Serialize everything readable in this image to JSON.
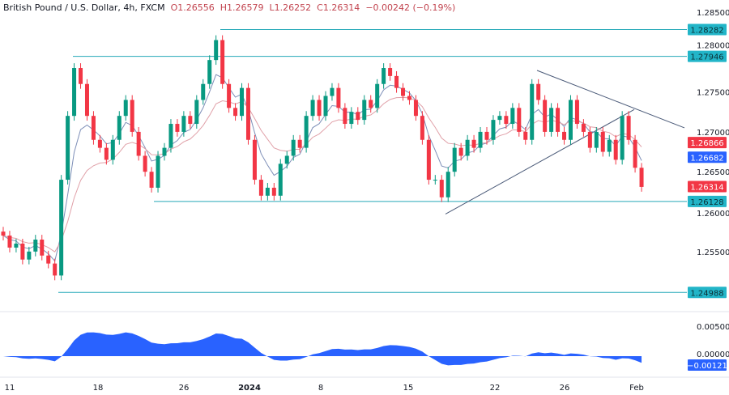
{
  "header": {
    "symbol": "British Pound / U.S. Dollar, 4h, FXCM",
    "open": "O1.26556",
    "high": "H1.26579",
    "low": "L1.26252",
    "close": "C1.26314",
    "change": "−0.00242 (−0.19%)"
  },
  "colors": {
    "up": "#089981",
    "down": "#f23645",
    "level": "#26a9b8",
    "ma_fast": "#7e8fb8",
    "ma_slow": "#e0a0a8",
    "osc": "#2962ff",
    "label_red": "#f23645",
    "label_blue": "#2962ff",
    "label_cyan": "#22b5c8"
  },
  "chart_data": {
    "type": "candlestick",
    "ylim": [
      1.2485,
      1.2865
    ],
    "y_ticks": [
      "1.28500",
      "1.28000",
      "1.27500",
      "1.27000",
      "1.26500",
      "1.26000",
      "1.25500"
    ],
    "x_ticks": [
      "11",
      "18",
      "26",
      "2024",
      "8",
      "15",
      "22",
      "26",
      "Feb"
    ],
    "closes": [
      1.257,
      1.2555,
      1.256,
      1.254,
      1.255,
      1.2565,
      1.2545,
      1.2535,
      1.252,
      1.264,
      1.272,
      1.278,
      1.276,
      1.272,
      1.269,
      1.268,
      1.2665,
      1.269,
      1.272,
      1.274,
      1.27,
      1.267,
      1.265,
      1.263,
      1.267,
      1.268,
      1.271,
      1.27,
      1.272,
      1.271,
      1.274,
      1.276,
      1.279,
      1.2815,
      1.276,
      1.273,
      1.272,
      1.2755,
      1.269,
      1.264,
      1.262,
      1.263,
      1.262,
      1.266,
      1.267,
      1.269,
      1.268,
      1.272,
      1.274,
      1.272,
      1.2745,
      1.2755,
      1.273,
      1.271,
      1.2725,
      1.2715,
      1.274,
      1.273,
      1.276,
      1.278,
      1.277,
      1.2755,
      1.2745,
      1.274,
      1.272,
      1.269,
      1.264,
      1.264,
      1.2618,
      1.265,
      1.268,
      1.267,
      1.269,
      1.268,
      1.27,
      1.269,
      1.2715,
      1.272,
      1.271,
      1.273,
      1.27,
      1.269,
      1.276,
      1.274,
      1.27,
      1.273,
      1.27,
      1.269,
      1.274,
      1.271,
      1.27,
      1.268,
      1.27,
      1.2675,
      1.269,
      1.2665,
      1.272,
      1.269,
      1.2655,
      1.2631
    ],
    "levels": [
      {
        "value": 1.28282,
        "label": "1.28282"
      },
      {
        "value": 1.27946,
        "label": "1.27946"
      },
      {
        "value": 1.26128,
        "label": "1.26128"
      },
      {
        "value": 1.24988,
        "label": "1.24988"
      }
    ],
    "price_labels": [
      {
        "label": "1.26866",
        "color": "red",
        "value": 1.26866
      },
      {
        "label": "1.26682",
        "color": "blue",
        "value": 1.26682
      },
      {
        "label": "1.26314",
        "color": "red",
        "value": 1.26314
      }
    ],
    "oscillator": {
      "y_ticks": [
        "0.00500",
        "0.00000"
      ],
      "current": "−0.00121",
      "ylim": [
        -0.003,
        0.0065
      ]
    }
  }
}
